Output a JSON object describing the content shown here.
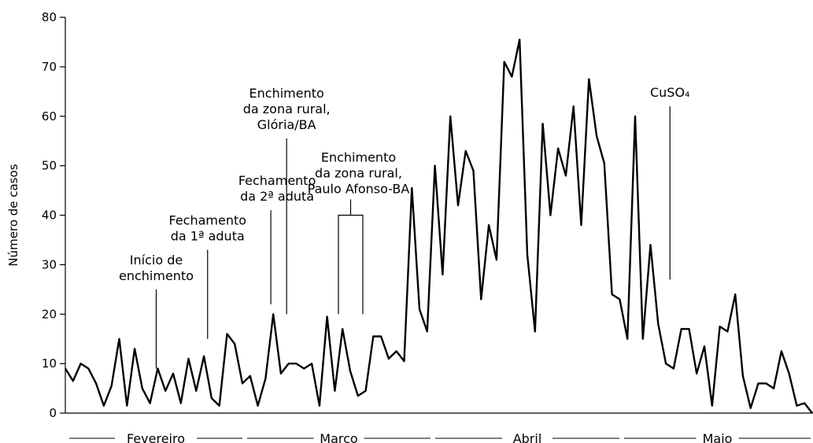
{
  "chart_data": {
    "type": "line",
    "title": "",
    "ylabel": "Número de casos",
    "xlabel": "",
    "ylim": [
      0,
      80
    ],
    "yticks": [
      0,
      10,
      20,
      30,
      40,
      50,
      60,
      70,
      80
    ],
    "grid": false,
    "months": [
      "Fevereiro",
      "Marco",
      "Abril",
      "Maio"
    ],
    "series": [
      {
        "values": [
          9,
          6.5,
          10,
          9,
          6,
          1.5,
          5.5,
          15,
          1.5,
          13,
          5,
          2,
          9,
          4.5,
          8,
          2,
          11,
          4.5,
          11.5,
          3,
          1.5,
          16,
          14,
          6,
          7.5,
          1.5,
          7,
          20,
          8,
          10,
          10,
          9,
          10,
          1.5,
          19.5,
          4.5,
          17,
          8.5,
          3.5,
          4.5,
          15.5,
          15.5,
          11,
          12.5,
          10.5,
          45.5,
          21,
          16.5,
          50,
          28,
          60,
          42,
          53,
          49,
          23,
          38,
          31,
          71,
          68,
          75.5,
          32,
          16.5,
          58.5,
          40,
          53.5,
          48,
          62,
          38,
          67.5,
          56,
          50.5,
          24,
          23,
          15,
          60,
          15,
          34,
          18,
          10,
          9,
          17,
          17,
          8,
          13.5,
          1.5,
          17.5,
          16.5,
          24,
          7.5,
          1,
          6,
          6,
          5,
          12.5,
          8,
          1.5,
          2,
          0
        ]
      }
    ],
    "annotations": [
      {
        "lines": [
          "Início de",
          "enchimento"
        ],
        "day": 23,
        "y_top": 25,
        "y_bottom": 9
      },
      {
        "lines": [
          "Fechamento",
          "da 1ª aduta"
        ],
        "day": 36,
        "y_top": 33,
        "y_bottom": 15
      },
      {
        "lines": [
          "Fechamento",
          "da 2ª aduta"
        ],
        "day": 52,
        "y_top": 41,
        "y_bottom": 22
      },
      {
        "lines": [
          "Enchimento",
          "da zona rural,",
          "Glória/BA"
        ],
        "day": 56,
        "y_top": 55.5,
        "y_bottom": 20
      },
      {
        "lines": [
          "Enchimento",
          "da zona rural,",
          "Paulo Afonso-BA"
        ],
        "day": 68,
        "y_top": 40,
        "y_bottom": 20
      },
      {
        "lines": [
          "CuSO₄"
        ],
        "day": 153,
        "y_top": 62,
        "y_bottom": 27
      }
    ]
  }
}
